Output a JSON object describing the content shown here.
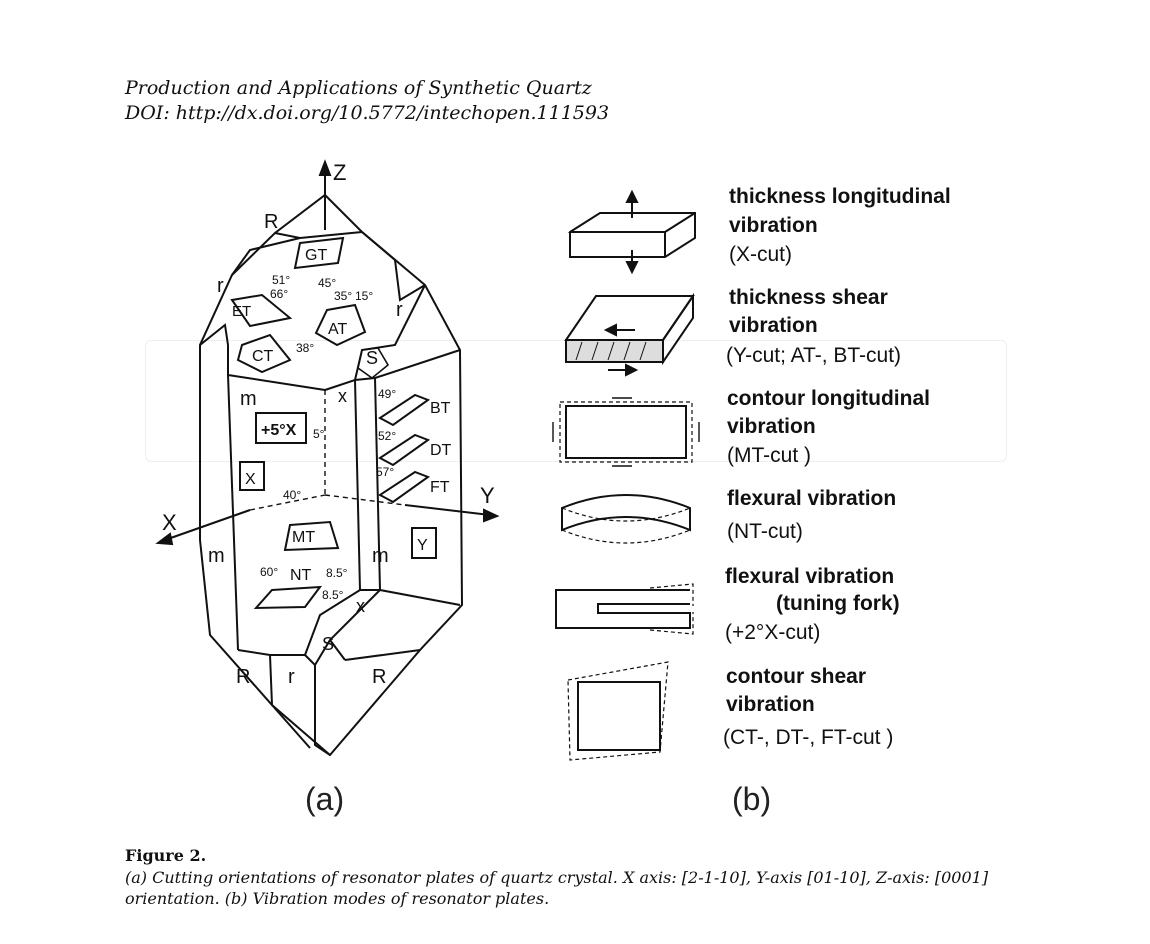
{
  "header": {
    "line1": "Production and Applications of Synthetic Quartz",
    "line2": "DOI: http://dx.doi.org/10.5772/intechopen.111593"
  },
  "figure_a": {
    "panel_label": "(a)",
    "axes": {
      "z": "Z",
      "x": "X",
      "y": "Y"
    },
    "faces": {
      "R": "R",
      "r": "r",
      "m": "m",
      "x": "x",
      "S": "S"
    },
    "cuts": {
      "GT": "GT",
      "ET": "ET",
      "AT": "AT",
      "CT": "CT",
      "X5": "+5°X",
      "X": "X",
      "BT": "BT",
      "DT": "DT",
      "FT": "FT",
      "MT": "MT",
      "NT": "NT",
      "Y": "Y"
    },
    "angles": {
      "a51": "51°",
      "a45": "45°",
      "a66": "66°",
      "a35": "35°",
      "a15": "15°",
      "a38": "38°",
      "a5": "5°",
      "a49": "49°",
      "a52": "52°",
      "a57": "57°",
      "a40": "40°",
      "a60": "60°",
      "a85": "8.5°",
      "a85b": "8.5°"
    }
  },
  "figure_b": {
    "panel_label": "(b)",
    "modes": [
      {
        "title1": "thickness longitudinal",
        "title2": "vibration",
        "cut": "(X-cut)"
      },
      {
        "title1": "thickness shear",
        "title2": "vibration",
        "cut": "(Y-cut; AT-, BT-cut)"
      },
      {
        "title1": "contour longitudinal",
        "title2": "vibration",
        "cut": "(MT-cut )"
      },
      {
        "title1": "flexural vibration",
        "title2": "",
        "cut": "(NT-cut)"
      },
      {
        "title1": "flexural vibration",
        "title2": "(tuning fork)",
        "cut": "(+2°X-cut)"
      },
      {
        "title1": "contour shear",
        "title2": "vibration",
        "cut": "(CT-, DT-, FT-cut )"
      }
    ]
  },
  "caption": {
    "title": "Figure 2.",
    "text": "(a) Cutting orientations of resonator plates of quartz crystal. X axis: [2-1-10], Y-axis [01-10], Z-axis: [0001] orientation. (b) Vibration modes of resonator plates."
  }
}
